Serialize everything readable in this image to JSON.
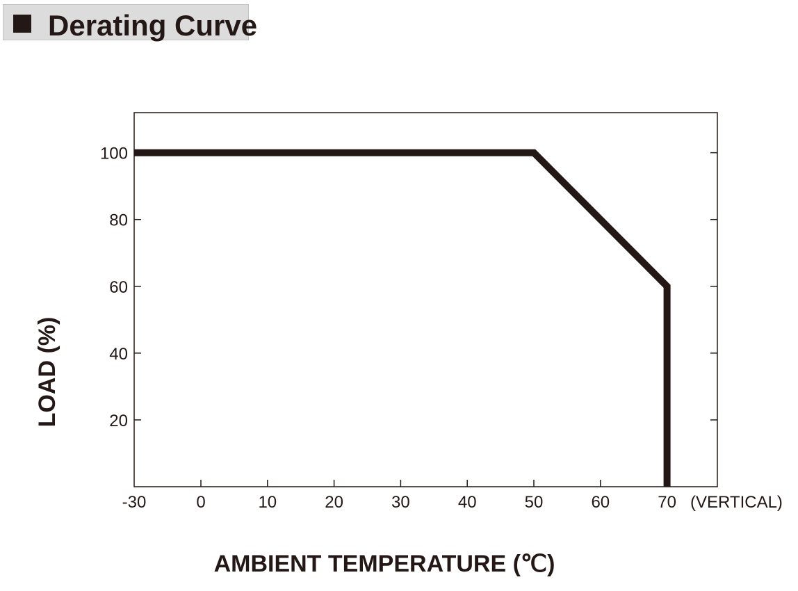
{
  "header": {
    "title": "Derating Curve",
    "bullet_icon": "black-square-icon"
  },
  "chart_data": {
    "type": "line",
    "xlabel": "AMBIENT TEMPERATURE (℃)",
    "ylabel": "LOAD (%)",
    "x_ticks": [
      "-30",
      "0",
      "10",
      "20",
      "30",
      "40",
      "50",
      "60",
      "70"
    ],
    "x_tick_note": "(VERTICAL)",
    "y_ticks": [
      100,
      80,
      60,
      40,
      20
    ],
    "xlim": [
      -30,
      78
    ],
    "ylim": [
      0,
      112
    ],
    "grid": false,
    "series": [
      {
        "points": [
          [
            -30,
            100
          ],
          [
            50,
            100
          ],
          [
            70,
            60
          ],
          [
            70,
            0
          ]
        ]
      }
    ],
    "colors": {
      "line": "#231815",
      "axis": "#231815"
    }
  }
}
